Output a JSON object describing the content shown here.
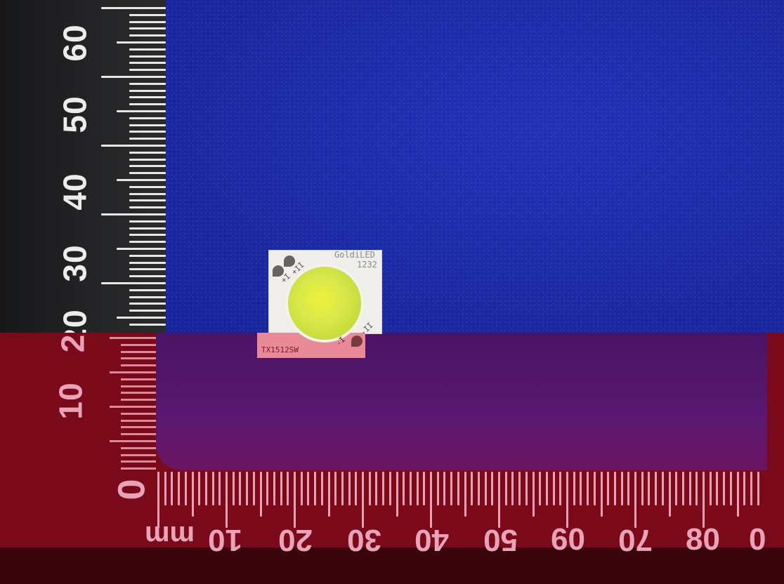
{
  "scene": {
    "description_colors": {
      "fabric": "#1d2aa8",
      "ruler": "#1c1d1f",
      "overlay_band": "#7a0a1a",
      "overlay_purple": "#5a1870",
      "led_board": "#efeeea",
      "led_phosphor": "#d9e84a"
    }
  },
  "vertical_ruler": {
    "labels_upper": [
      "60",
      "50",
      "40",
      "30",
      "20"
    ],
    "labels_lower": [
      "2",
      "10"
    ],
    "zero_label": "0"
  },
  "horizontal_ruler": {
    "unit": "mm",
    "labels": [
      "10",
      "20",
      "30",
      "40",
      "50",
      "60",
      "70",
      "80",
      "0"
    ]
  },
  "led": {
    "brand": "GoldiLED",
    "model": "1232",
    "part_number": "TX1512SW",
    "pad_marks": [
      "+I",
      "+II",
      "-I",
      "-II"
    ]
  }
}
